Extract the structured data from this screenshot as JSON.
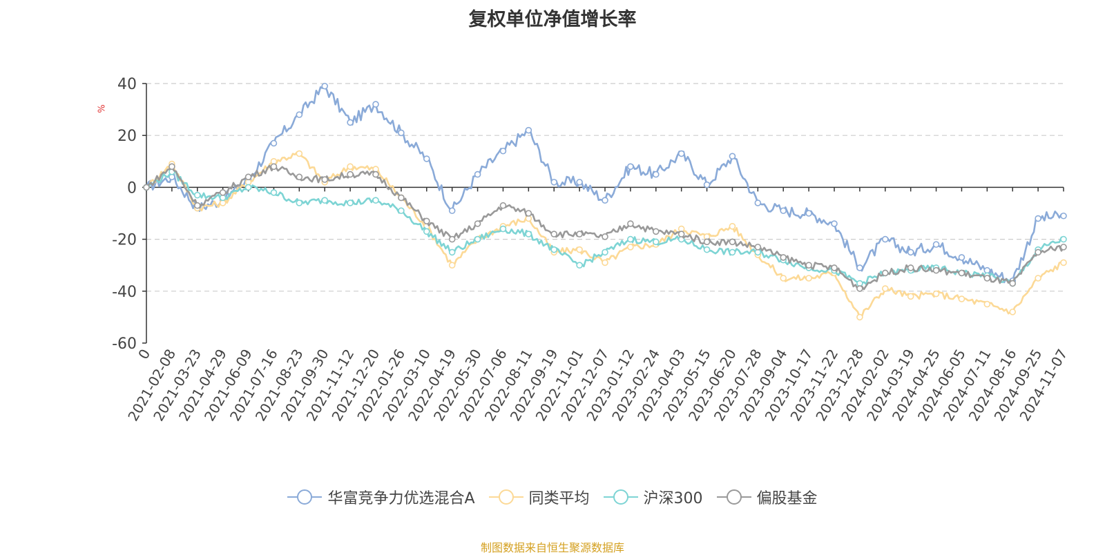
{
  "title": "复权单位净值增长率",
  "unit_label": "%",
  "source": "制图数据来自恒生聚源数据库",
  "colors": {
    "series_0": "#8aaad8",
    "series_1": "#fcd996",
    "series_2": "#7dd4d4",
    "series_3": "#999999",
    "grid": "#cccccc",
    "axis": "#333333"
  },
  "chart_data": {
    "type": "line",
    "title": "复权单位净值增长率",
    "ylabel": "%",
    "ylim": [
      -60,
      40
    ],
    "yticks": [
      40,
      20,
      0,
      -20,
      -40,
      -60
    ],
    "grid": true,
    "legend_position": "bottom",
    "x_labels": [
      "0",
      "2021-02-08",
      "2021-03-23",
      "2021-04-29",
      "2021-06-09",
      "2021-07-16",
      "2021-08-23",
      "2021-09-30",
      "2021-11-12",
      "2021-12-20",
      "2022-01-26",
      "2022-03-10",
      "2022-04-19",
      "2022-05-30",
      "2022-07-06",
      "2022-08-11",
      "2022-09-19",
      "2022-11-01",
      "2022-12-07",
      "2023-01-12",
      "2023-02-24",
      "2023-04-03",
      "2023-05-15",
      "2023-06-20",
      "2023-07-28",
      "2023-09-04",
      "2023-10-17",
      "2023-11-22",
      "2023-12-28",
      "2024-02-02",
      "2024-03-19",
      "2024-04-25",
      "2024-06-05",
      "2024-07-11",
      "2024-08-16",
      "2024-09-25",
      "2024-11-07"
    ],
    "series": [
      {
        "name": "华富竞争力优选混合A",
        "values": [
          0,
          4,
          -8,
          -5,
          3,
          17,
          28,
          39,
          25,
          32,
          21,
          11,
          -9,
          5,
          14,
          22,
          2,
          2,
          -5,
          8,
          5,
          13,
          1,
          12,
          -6,
          -9,
          -10,
          -14,
          -31,
          -20,
          -25,
          -22,
          -27,
          -32,
          -36,
          -12,
          -11
        ]
      },
      {
        "name": "同类平均",
        "values": [
          0,
          9,
          -8,
          -6,
          2,
          10,
          13,
          2,
          8,
          7,
          -4,
          -15,
          -30,
          -20,
          -15,
          -12,
          -25,
          -24,
          -29,
          -23,
          -22,
          -16,
          -19,
          -15,
          -26,
          -35,
          -35,
          -33,
          -50,
          -39,
          -42,
          -41,
          -43,
          -45,
          -48,
          -35,
          -29
        ]
      },
      {
        "name": "沪深300",
        "values": [
          0,
          6,
          -3,
          -4,
          0,
          -2,
          -6,
          -5,
          -6,
          -5,
          -9,
          -17,
          -25,
          -20,
          -16,
          -18,
          -24,
          -30,
          -25,
          -20,
          -21,
          -20,
          -24,
          -25,
          -25,
          -28,
          -31,
          -32,
          -37,
          -33,
          -32,
          -31,
          -33,
          -34,
          -37,
          -24,
          -20
        ]
      },
      {
        "name": "偏股基金",
        "values": [
          0,
          8,
          -7,
          -2,
          4,
          8,
          4,
          3,
          5,
          5,
          -4,
          -13,
          -20,
          -14,
          -7,
          -10,
          -18,
          -18,
          -19,
          -14,
          -17,
          -18,
          -21,
          -21,
          -23,
          -27,
          -30,
          -31,
          -39,
          -33,
          -31,
          -32,
          -33,
          -35,
          -37,
          -25,
          -23
        ]
      }
    ]
  }
}
